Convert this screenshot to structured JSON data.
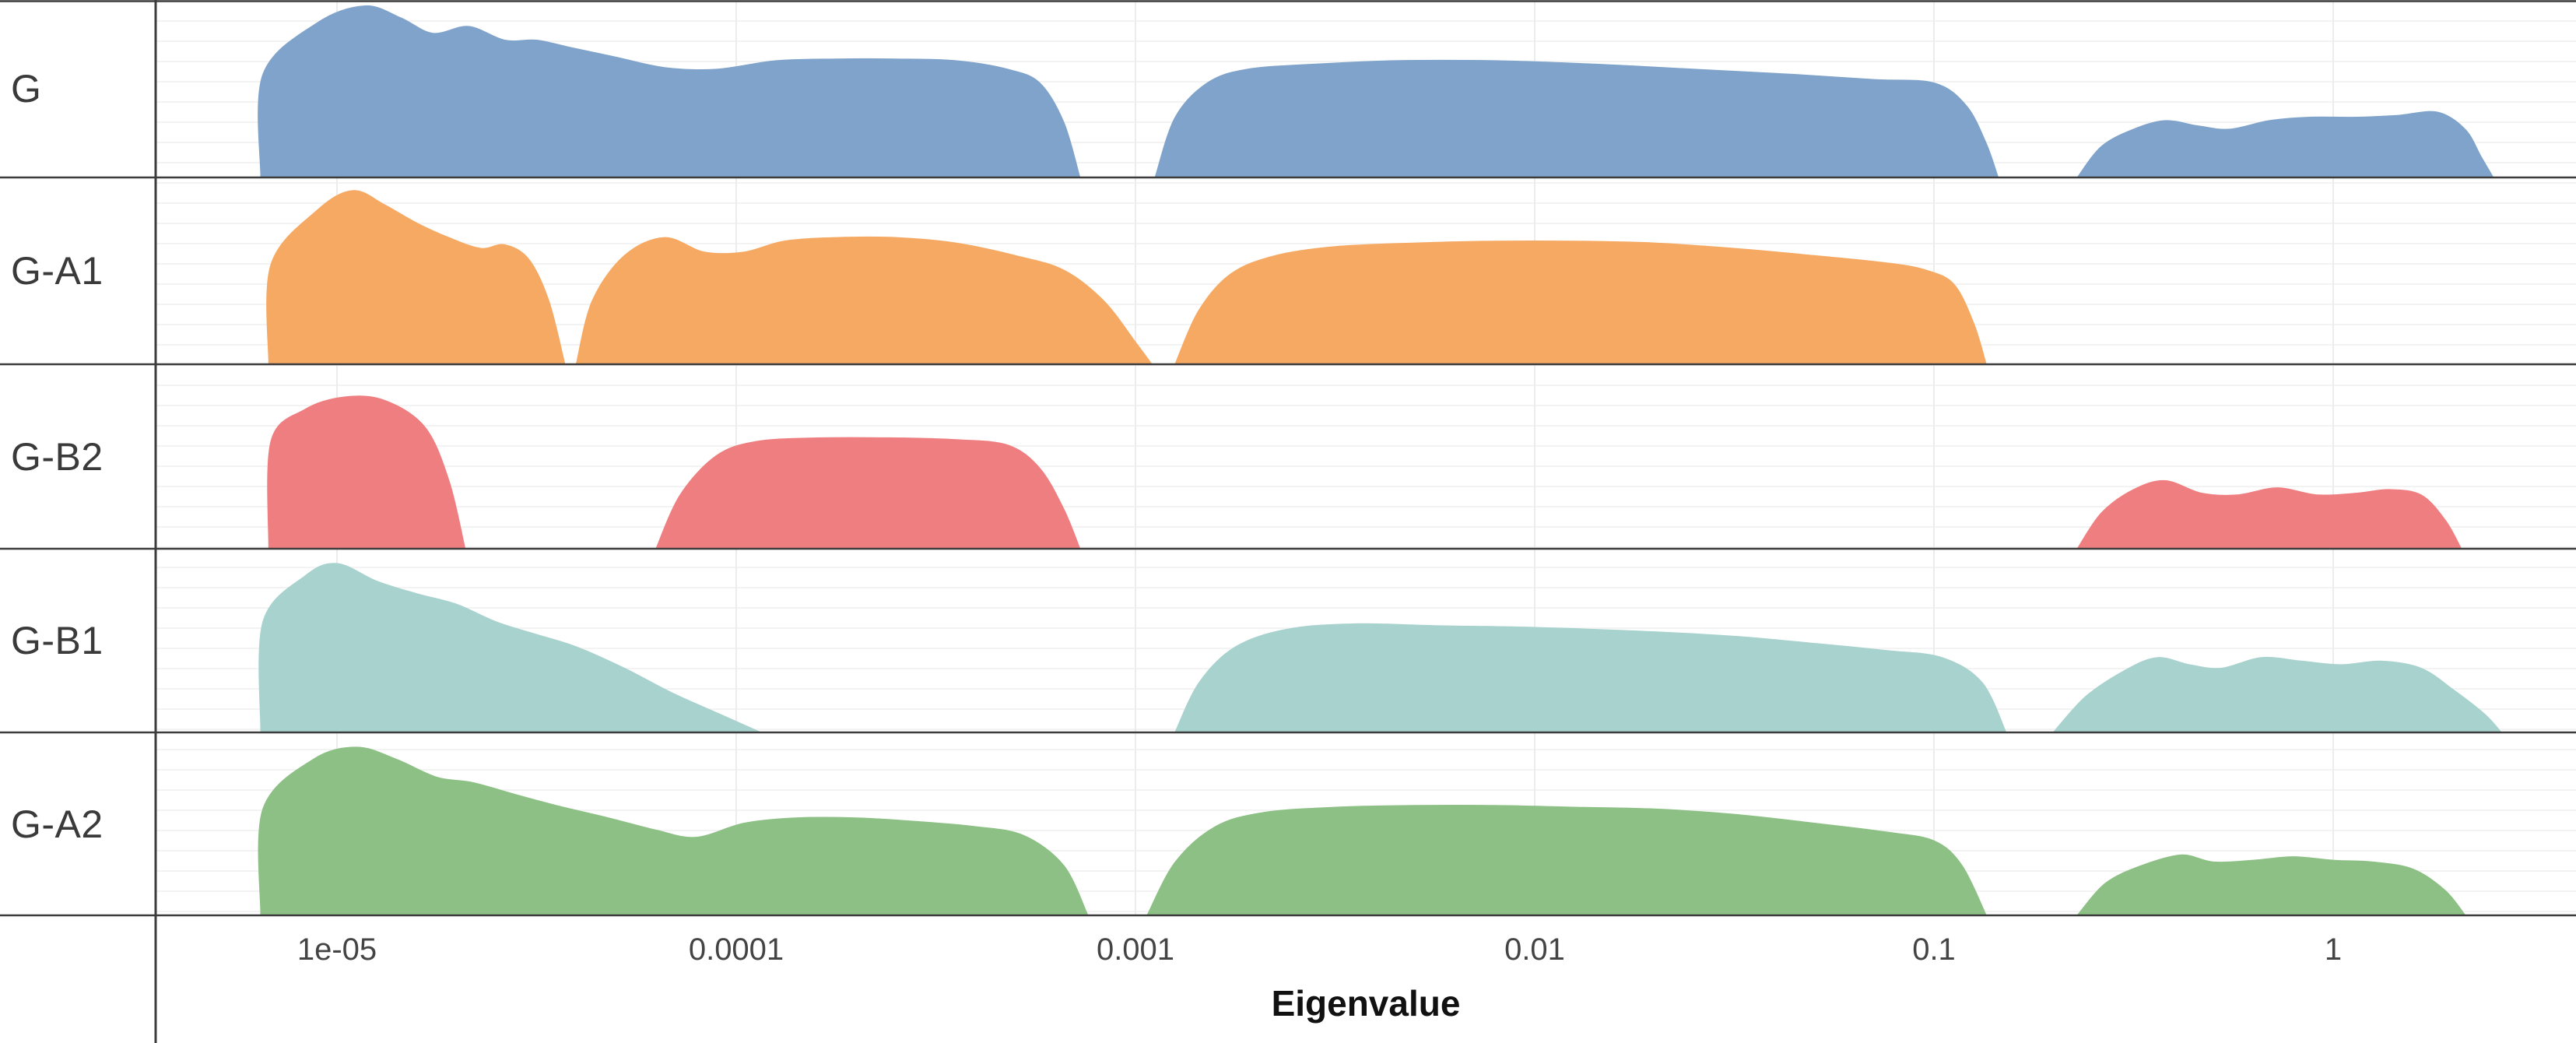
{
  "chart_data": {
    "type": "area",
    "variant": "ridgeline-density",
    "xlabel": "Eigenvalue",
    "x_scale": "log10",
    "x_range_log10": [
      -5.25,
      0.62
    ],
    "grid": "on",
    "legend": "none",
    "x_ticks": [
      {
        "value": 1e-05,
        "label": "1e-05"
      },
      {
        "value": 0.0001,
        "label": "0.0001"
      },
      {
        "value": 0.001,
        "label": "0.001"
      },
      {
        "value": 0.01,
        "label": "0.01"
      },
      {
        "value": 0.1,
        "label": "0.1"
      },
      {
        "value": 1,
        "label": "1"
      }
    ],
    "series": [
      {
        "label": "G",
        "color": "#7FA3CA",
        "blobs": [
          [
            [
              -5.19,
              0
            ],
            [
              -5.185,
              0.6
            ],
            [
              -5.05,
              0.9
            ],
            [
              -4.93,
              1.0
            ],
            [
              -4.84,
              0.93
            ],
            [
              -4.76,
              0.84
            ],
            [
              -4.67,
              0.88
            ],
            [
              -4.58,
              0.8
            ],
            [
              -4.5,
              0.8
            ],
            [
              -4.42,
              0.76
            ],
            [
              -4.3,
              0.7
            ],
            [
              -4.18,
              0.64
            ],
            [
              -4.05,
              0.63
            ],
            [
              -3.9,
              0.68
            ],
            [
              -3.75,
              0.69
            ],
            [
              -3.6,
              0.69
            ],
            [
              -3.45,
              0.68
            ],
            [
              -3.32,
              0.63
            ],
            [
              -3.24,
              0.55
            ],
            [
              -3.18,
              0.32
            ],
            [
              -3.14,
              0
            ]
          ],
          [
            [
              -2.95,
              0
            ],
            [
              -2.9,
              0.35
            ],
            [
              -2.82,
              0.55
            ],
            [
              -2.72,
              0.63
            ],
            [
              -2.55,
              0.66
            ],
            [
              -2.35,
              0.68
            ],
            [
              -2.1,
              0.68
            ],
            [
              -1.85,
              0.66
            ],
            [
              -1.6,
              0.63
            ],
            [
              -1.35,
              0.6
            ],
            [
              -1.15,
              0.57
            ],
            [
              -1.0,
              0.55
            ],
            [
              -0.92,
              0.42
            ],
            [
              -0.87,
              0.2
            ],
            [
              -0.84,
              0
            ]
          ],
          [
            [
              -0.64,
              0
            ],
            [
              -0.58,
              0.18
            ],
            [
              -0.5,
              0.28
            ],
            [
              -0.42,
              0.33
            ],
            [
              -0.34,
              0.3
            ],
            [
              -0.26,
              0.28
            ],
            [
              -0.16,
              0.33
            ],
            [
              -0.06,
              0.35
            ],
            [
              0.06,
              0.35
            ],
            [
              0.16,
              0.36
            ],
            [
              0.26,
              0.38
            ],
            [
              0.33,
              0.28
            ],
            [
              0.37,
              0.12
            ],
            [
              0.4,
              0
            ]
          ]
        ]
      },
      {
        "label": "G-A1",
        "color": "#F5A963",
        "blobs": [
          [
            [
              -5.17,
              0
            ],
            [
              -5.165,
              0.55
            ],
            [
              -5.05,
              0.85
            ],
            [
              -4.96,
              0.96
            ],
            [
              -4.88,
              0.88
            ],
            [
              -4.8,
              0.78
            ],
            [
              -4.72,
              0.7
            ],
            [
              -4.64,
              0.64
            ],
            [
              -4.58,
              0.66
            ],
            [
              -4.52,
              0.58
            ],
            [
              -4.47,
              0.35
            ],
            [
              -4.43,
              0
            ]
          ],
          [
            [
              -4.4,
              0
            ],
            [
              -4.36,
              0.35
            ],
            [
              -4.28,
              0.6
            ],
            [
              -4.18,
              0.7
            ],
            [
              -4.08,
              0.62
            ],
            [
              -3.98,
              0.62
            ],
            [
              -3.88,
              0.68
            ],
            [
              -3.75,
              0.7
            ],
            [
              -3.6,
              0.7
            ],
            [
              -3.45,
              0.67
            ],
            [
              -3.3,
              0.6
            ],
            [
              -3.18,
              0.52
            ],
            [
              -3.08,
              0.35
            ],
            [
              -3.0,
              0.12
            ],
            [
              -2.96,
              0
            ]
          ],
          [
            [
              -2.9,
              0
            ],
            [
              -2.84,
              0.3
            ],
            [
              -2.76,
              0.5
            ],
            [
              -2.65,
              0.6
            ],
            [
              -2.5,
              0.65
            ],
            [
              -2.3,
              0.67
            ],
            [
              -2.1,
              0.68
            ],
            [
              -1.9,
              0.68
            ],
            [
              -1.7,
              0.67
            ],
            [
              -1.5,
              0.64
            ],
            [
              -1.3,
              0.6
            ],
            [
              -1.12,
              0.56
            ],
            [
              -1.02,
              0.52
            ],
            [
              -0.95,
              0.44
            ],
            [
              -0.9,
              0.22
            ],
            [
              -0.87,
              0
            ]
          ]
        ]
      },
      {
        "label": "G-B2",
        "color": "#EE7E80",
        "blobs": [
          [
            [
              -5.17,
              0
            ],
            [
              -5.165,
              0.6
            ],
            [
              -5.08,
              0.78
            ],
            [
              -4.98,
              0.85
            ],
            [
              -4.88,
              0.83
            ],
            [
              -4.78,
              0.68
            ],
            [
              -4.72,
              0.38
            ],
            [
              -4.68,
              0
            ]
          ],
          [
            [
              -4.2,
              0
            ],
            [
              -4.14,
              0.3
            ],
            [
              -4.05,
              0.52
            ],
            [
              -3.95,
              0.6
            ],
            [
              -3.8,
              0.62
            ],
            [
              -3.6,
              0.62
            ],
            [
              -3.45,
              0.61
            ],
            [
              -3.32,
              0.58
            ],
            [
              -3.24,
              0.45
            ],
            [
              -3.18,
              0.22
            ],
            [
              -3.14,
              0
            ]
          ],
          [
            [
              -0.64,
              0
            ],
            [
              -0.58,
              0.2
            ],
            [
              -0.5,
              0.33
            ],
            [
              -0.42,
              0.38
            ],
            [
              -0.33,
              0.31
            ],
            [
              -0.24,
              0.3
            ],
            [
              -0.14,
              0.34
            ],
            [
              -0.04,
              0.3
            ],
            [
              0.06,
              0.31
            ],
            [
              0.14,
              0.33
            ],
            [
              0.22,
              0.3
            ],
            [
              0.28,
              0.16
            ],
            [
              0.32,
              0
            ]
          ]
        ]
      },
      {
        "label": "G-B1",
        "color": "#A8D2CE",
        "blobs": [
          [
            [
              -5.19,
              0
            ],
            [
              -5.185,
              0.62
            ],
            [
              -5.08,
              0.88
            ],
            [
              -5.0,
              0.95
            ],
            [
              -4.9,
              0.85
            ],
            [
              -4.8,
              0.78
            ],
            [
              -4.7,
              0.72
            ],
            [
              -4.6,
              0.62
            ],
            [
              -4.5,
              0.55
            ],
            [
              -4.4,
              0.48
            ],
            [
              -4.28,
              0.36
            ],
            [
              -4.16,
              0.22
            ],
            [
              -4.04,
              0.1
            ],
            [
              -3.94,
              0
            ]
          ],
          [
            [
              -2.9,
              0
            ],
            [
              -2.84,
              0.28
            ],
            [
              -2.75,
              0.48
            ],
            [
              -2.62,
              0.58
            ],
            [
              -2.45,
              0.61
            ],
            [
              -2.25,
              0.6
            ],
            [
              -2.0,
              0.59
            ],
            [
              -1.75,
              0.57
            ],
            [
              -1.5,
              0.54
            ],
            [
              -1.3,
              0.5
            ],
            [
              -1.12,
              0.46
            ],
            [
              -0.98,
              0.42
            ],
            [
              -0.88,
              0.28
            ],
            [
              -0.82,
              0
            ]
          ],
          [
            [
              -0.7,
              0
            ],
            [
              -0.62,
              0.2
            ],
            [
              -0.52,
              0.35
            ],
            [
              -0.44,
              0.42
            ],
            [
              -0.36,
              0.38
            ],
            [
              -0.28,
              0.36
            ],
            [
              -0.18,
              0.42
            ],
            [
              -0.08,
              0.4
            ],
            [
              0.02,
              0.38
            ],
            [
              0.12,
              0.4
            ],
            [
              0.22,
              0.36
            ],
            [
              0.3,
              0.24
            ],
            [
              0.38,
              0.1
            ],
            [
              0.42,
              0
            ]
          ]
        ]
      },
      {
        "label": "G-A2",
        "color": "#8CC084",
        "blobs": [
          [
            [
              -5.19,
              0
            ],
            [
              -5.185,
              0.6
            ],
            [
              -5.06,
              0.88
            ],
            [
              -4.95,
              0.95
            ],
            [
              -4.85,
              0.88
            ],
            [
              -4.75,
              0.78
            ],
            [
              -4.66,
              0.75
            ],
            [
              -4.55,
              0.68
            ],
            [
              -4.45,
              0.62
            ],
            [
              -4.32,
              0.55
            ],
            [
              -4.2,
              0.48
            ],
            [
              -4.1,
              0.44
            ],
            [
              -3.98,
              0.52
            ],
            [
              -3.85,
              0.55
            ],
            [
              -3.7,
              0.55
            ],
            [
              -3.55,
              0.53
            ],
            [
              -3.4,
              0.5
            ],
            [
              -3.28,
              0.45
            ],
            [
              -3.18,
              0.28
            ],
            [
              -3.12,
              0
            ]
          ],
          [
            [
              -2.97,
              0
            ],
            [
              -2.9,
              0.3
            ],
            [
              -2.8,
              0.5
            ],
            [
              -2.68,
              0.58
            ],
            [
              -2.5,
              0.61
            ],
            [
              -2.3,
              0.62
            ],
            [
              -2.1,
              0.62
            ],
            [
              -1.9,
              0.61
            ],
            [
              -1.7,
              0.6
            ],
            [
              -1.5,
              0.57
            ],
            [
              -1.3,
              0.52
            ],
            [
              -1.12,
              0.47
            ],
            [
              -1.0,
              0.42
            ],
            [
              -0.93,
              0.28
            ],
            [
              -0.87,
              0
            ]
          ],
          [
            [
              -0.64,
              0
            ],
            [
              -0.57,
              0.18
            ],
            [
              -0.48,
              0.28
            ],
            [
              -0.38,
              0.34
            ],
            [
              -0.3,
              0.3
            ],
            [
              -0.2,
              0.31
            ],
            [
              -0.1,
              0.33
            ],
            [
              0.0,
              0.31
            ],
            [
              0.1,
              0.3
            ],
            [
              0.2,
              0.26
            ],
            [
              0.28,
              0.14
            ],
            [
              0.33,
              0
            ]
          ]
        ]
      }
    ],
    "style_colors": {
      "separator": "#3c3c3c",
      "grid_vertical": "#ececec",
      "tick_text": "#444444",
      "row_label_text": "#3a3a3a",
      "axis_title_text": "#111111"
    }
  }
}
